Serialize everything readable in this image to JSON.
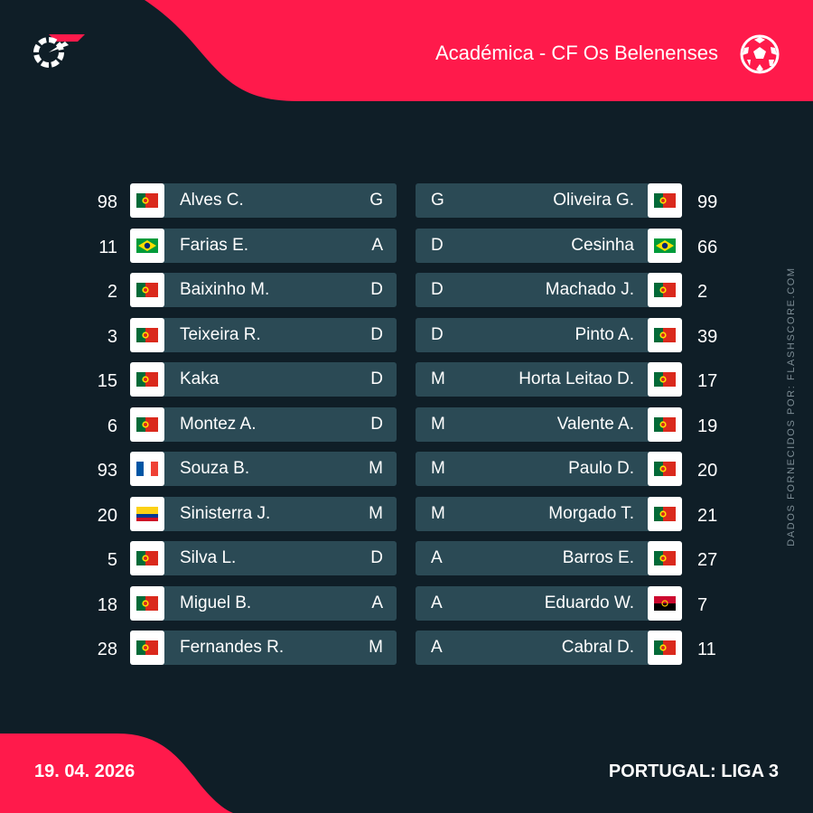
{
  "header": {
    "match_title": "Académica - CF Os Belenenses"
  },
  "colors": {
    "accent": "#ff1a4b",
    "background": "#0f1e27",
    "row": "#2b4a55"
  },
  "icons": {
    "brand": "flashscore-logo-icon",
    "sport": "football-icon"
  },
  "home_lineup": [
    {
      "number": "98",
      "name": "Alves C.",
      "position": "G",
      "flag": "PT"
    },
    {
      "number": "11",
      "name": "Farias E.",
      "position": "A",
      "flag": "BR"
    },
    {
      "number": "2",
      "name": "Baixinho M.",
      "position": "D",
      "flag": "PT"
    },
    {
      "number": "3",
      "name": "Teixeira R.",
      "position": "D",
      "flag": "PT"
    },
    {
      "number": "15",
      "name": "Kaka",
      "position": "D",
      "flag": "PT"
    },
    {
      "number": "6",
      "name": "Montez A.",
      "position": "D",
      "flag": "PT"
    },
    {
      "number": "93",
      "name": "Souza B.",
      "position": "M",
      "flag": "FR"
    },
    {
      "number": "20",
      "name": "Sinisterra J.",
      "position": "M",
      "flag": "CO"
    },
    {
      "number": "5",
      "name": "Silva L.",
      "position": "D",
      "flag": "PT"
    },
    {
      "number": "18",
      "name": "Miguel B.",
      "position": "A",
      "flag": "PT"
    },
    {
      "number": "28",
      "name": "Fernandes R.",
      "position": "M",
      "flag": "PT"
    }
  ],
  "away_lineup": [
    {
      "number": "99",
      "name": "Oliveira G.",
      "position": "G",
      "flag": "PT"
    },
    {
      "number": "66",
      "name": "Cesinha",
      "position": "D",
      "flag": "BR"
    },
    {
      "number": "2",
      "name": "Machado J.",
      "position": "D",
      "flag": "PT"
    },
    {
      "number": "39",
      "name": "Pinto A.",
      "position": "D",
      "flag": "PT"
    },
    {
      "number": "17",
      "name": "Horta Leitao D.",
      "position": "M",
      "flag": "PT"
    },
    {
      "number": "19",
      "name": "Valente A.",
      "position": "M",
      "flag": "PT"
    },
    {
      "number": "20",
      "name": "Paulo D.",
      "position": "M",
      "flag": "PT"
    },
    {
      "number": "21",
      "name": "Morgado T.",
      "position": "M",
      "flag": "PT"
    },
    {
      "number": "27",
      "name": "Barros E.",
      "position": "A",
      "flag": "PT"
    },
    {
      "number": "7",
      "name": "Eduardo W.",
      "position": "A",
      "flag": "AO"
    },
    {
      "number": "11",
      "name": "Cabral D.",
      "position": "A",
      "flag": "PT"
    }
  ],
  "side_note": "DADOS FORNECIDOS POR: FLASHSCORE.COM",
  "footer": {
    "date": "19. 04. 2026",
    "league": "PORTUGAL: LIGA 3"
  }
}
